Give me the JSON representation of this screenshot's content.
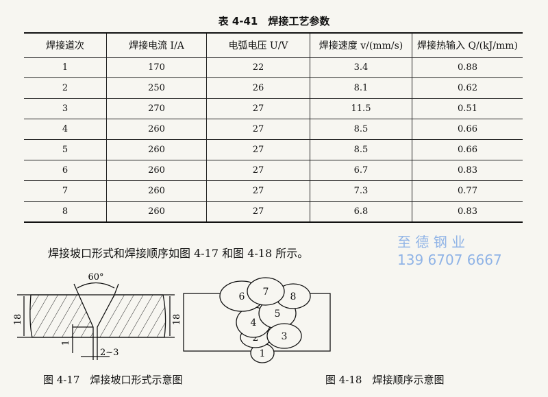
{
  "table_title": "表 4-41　焊接工艺参数",
  "headers": [
    "焊接道次",
    "焊接电流 I/A",
    "电弧电压 U/V",
    "焊接速度 v/(mm/s)",
    "焊接热输入 Q/(kJ/mm)"
  ],
  "rows": [
    [
      "1",
      "170",
      "22",
      "3.4",
      "0.88"
    ],
    [
      "2",
      "250",
      "26",
      "8.1",
      "0.62"
    ],
    [
      "3",
      "270",
      "27",
      "11.5",
      "0.51"
    ],
    [
      "4",
      "260",
      "27",
      "8.5",
      "0.66"
    ],
    [
      "5",
      "260",
      "27",
      "8.5",
      "0.66"
    ],
    [
      "6",
      "260",
      "27",
      "6.7",
      "0.83"
    ],
    [
      "7",
      "260",
      "27",
      "7.3",
      "0.77"
    ],
    [
      "8",
      "260",
      "27",
      "6.8",
      "0.83"
    ]
  ],
  "text_line": "焊接坡口形式和焊接顺序如图 4-17 和图 4-18 所示。",
  "fig17": {
    "angle": "60°",
    "thickness_left": "18",
    "thickness_right": "18",
    "root_face": "1",
    "gap": "2~3",
    "caption": "图 4-17　焊接坡口形式示意图"
  },
  "fig18": {
    "passes": [
      "1",
      "2",
      "3",
      "4",
      "5",
      "6",
      "7",
      "8"
    ],
    "caption": "图 4-18　焊接顺序示意图"
  },
  "watermark": {
    "line1": "至 德 钢 业",
    "line2": "139 6707 6667"
  }
}
